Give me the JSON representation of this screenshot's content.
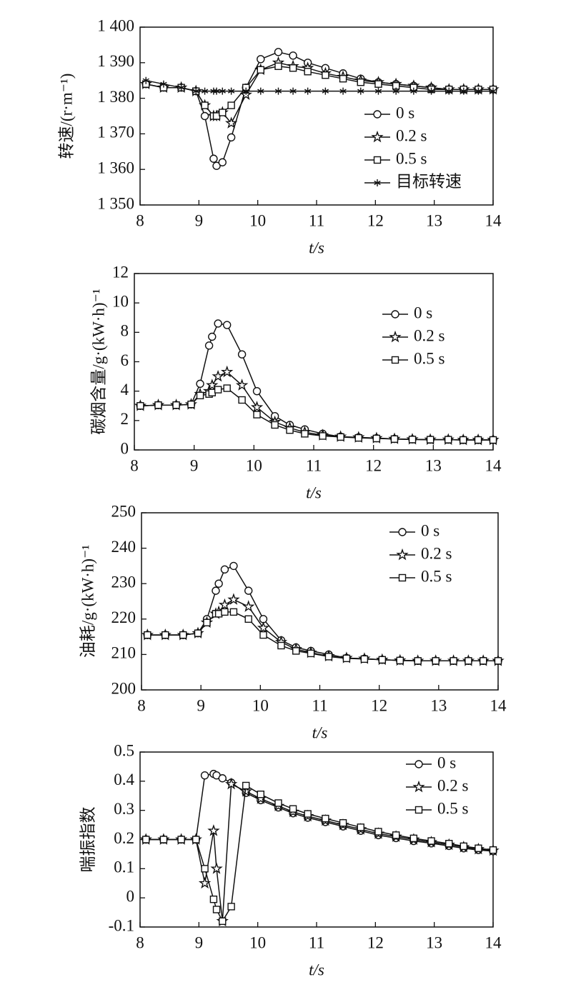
{
  "chart_data": [
    {
      "type": "line",
      "xlabel": "t/s",
      "ylabel": "转速/(r·m⁻¹)",
      "x": [
        8.1,
        8.4,
        8.7,
        8.95,
        9.1,
        9.25,
        9.3,
        9.4,
        9.55,
        9.8,
        10.05,
        10.35,
        10.6,
        10.85,
        11.15,
        11.45,
        11.75,
        12.05,
        12.35,
        12.65,
        12.95,
        13.25,
        13.5,
        13.75,
        14
      ],
      "xlim": [
        8,
        14
      ],
      "xticks": [
        8,
        9,
        10,
        11,
        12,
        13,
        14
      ],
      "ylim": [
        1350,
        1400
      ],
      "yticks": [
        {
          "value": 1350,
          "label": "1 350"
        },
        {
          "value": 1360,
          "label": "1 360"
        },
        {
          "value": 1370,
          "label": "1 370"
        },
        {
          "value": 1380,
          "label": "1 380"
        },
        {
          "value": 1390,
          "label": "1 390"
        },
        {
          "value": 1400,
          "label": "1 400"
        }
      ],
      "series": [
        {
          "name": "0 s",
          "color": "#111111",
          "marker": "circle",
          "values": [
            1384,
            1383,
            1383,
            1382,
            1375,
            1363,
            1361,
            1362,
            1369,
            1383,
            1391,
            1393,
            1392,
            1390,
            1388.5,
            1387,
            1385.5,
            1384.5,
            1384,
            1383.5,
            1383,
            1382.5,
            1382.5,
            1382.5,
            1382.5
          ]
        },
        {
          "name": "0.2 s",
          "color": "#111111",
          "marker": "star",
          "values": [
            1384,
            1383,
            1383,
            1382,
            1378,
            1375,
            1375,
            1376,
            1373,
            1381,
            1388,
            1390,
            1389,
            1388.5,
            1387,
            1386,
            1385,
            1384.5,
            1384,
            1383.5,
            1383,
            1382.5,
            1382.5,
            1382.5,
            1382.5
          ]
        },
        {
          "name": "0.5 s",
          "color": "#111111",
          "marker": "square",
          "values": [
            1384,
            1383,
            1383,
            1382,
            1378,
            1375,
            1375,
            1376,
            1378,
            1383,
            1388,
            1389,
            1388.5,
            1387.5,
            1386.5,
            1385.5,
            1384.5,
            1384,
            1383.5,
            1383,
            1382.5,
            1382.5,
            1382.5,
            1382.5,
            1382.5
          ]
        },
        {
          "name": "目标转速",
          "color": "#111111",
          "marker": "asterisk",
          "values": [
            1385,
            1384,
            1383,
            1382,
            1382,
            1382,
            1382,
            1382,
            1382,
            1382,
            1382,
            1382,
            1382,
            1382,
            1382,
            1382,
            1382,
            1382,
            1382,
            1382,
            1382,
            1382,
            1382,
            1382,
            1382
          ]
        }
      ]
    },
    {
      "type": "line",
      "xlabel": "t/s",
      "ylabel": "碳烟含量/g·(kW·h)⁻¹",
      "x": [
        8.1,
        8.4,
        8.7,
        8.95,
        9.1,
        9.25,
        9.3,
        9.4,
        9.55,
        9.8,
        10.05,
        10.35,
        10.6,
        10.85,
        11.15,
        11.45,
        11.75,
        12.05,
        12.35,
        12.65,
        12.95,
        13.25,
        13.5,
        13.75,
        14
      ],
      "xlim": [
        8,
        14
      ],
      "xticks": [
        8,
        9,
        10,
        11,
        12,
        13,
        14
      ],
      "ylim": [
        0,
        12
      ],
      "yticks": [
        0,
        2,
        4,
        6,
        8,
        10,
        12
      ],
      "series": [
        {
          "name": "0 s",
          "color": "#111111",
          "marker": "circle",
          "values": [
            3,
            3.05,
            3.05,
            3.1,
            4.5,
            7.1,
            7.7,
            8.6,
            8.5,
            6.5,
            4,
            2.3,
            1.7,
            1.4,
            1.1,
            0.9,
            0.85,
            0.8,
            0.75,
            0.72,
            0.7,
            0.7,
            0.68,
            0.68,
            0.68
          ]
        },
        {
          "name": "0.2 s",
          "color": "#111111",
          "marker": "star",
          "values": [
            3,
            3.05,
            3.05,
            3.1,
            3.8,
            4,
            4.4,
            5,
            5.3,
            4.4,
            2.9,
            1.9,
            1.5,
            1.2,
            1,
            0.9,
            0.85,
            0.8,
            0.75,
            0.72,
            0.7,
            0.7,
            0.68,
            0.68,
            0.68
          ]
        },
        {
          "name": "0.5 s",
          "color": "#111111",
          "marker": "square",
          "values": [
            3,
            3.05,
            3.05,
            3.1,
            3.7,
            3.8,
            3.9,
            4.1,
            4.2,
            3.4,
            2.4,
            1.7,
            1.35,
            1.1,
            0.95,
            0.88,
            0.82,
            0.78,
            0.74,
            0.71,
            0.7,
            0.7,
            0.68,
            0.68,
            0.68
          ]
        }
      ]
    },
    {
      "type": "line",
      "xlabel": "t/s",
      "ylabel": "油耗/g·(kW·h)⁻¹",
      "x": [
        8.1,
        8.4,
        8.7,
        8.95,
        9.1,
        9.25,
        9.3,
        9.4,
        9.55,
        9.8,
        10.05,
        10.35,
        10.6,
        10.85,
        11.15,
        11.45,
        11.75,
        12.05,
        12.35,
        12.65,
        12.95,
        13.25,
        13.5,
        13.75,
        14
      ],
      "xlim": [
        8,
        14
      ],
      "xticks": [
        8,
        9,
        10,
        11,
        12,
        13,
        14
      ],
      "ylim": [
        200,
        250
      ],
      "yticks": [
        200,
        210,
        220,
        230,
        240,
        250
      ],
      "series": [
        {
          "name": "0 s",
          "color": "#111111",
          "marker": "circle",
          "values": [
            215.5,
            215.5,
            215.5,
            216,
            220,
            228,
            230,
            234,
            235,
            228,
            220,
            214,
            212,
            211,
            210,
            209,
            208.8,
            208.5,
            208.3,
            208.2,
            208.2,
            208.2,
            208.2,
            208.2,
            208.2
          ]
        },
        {
          "name": "0.2 s",
          "color": "#111111",
          "marker": "star",
          "values": [
            215.5,
            215.5,
            215.5,
            216,
            219,
            221.5,
            222,
            224,
            225.5,
            223.5,
            217.5,
            213.5,
            211.5,
            210.5,
            209.5,
            209,
            208.8,
            208.5,
            208.3,
            208.2,
            208.2,
            208.2,
            208.2,
            208.2,
            208.2
          ]
        },
        {
          "name": "0.5 s",
          "color": "#111111",
          "marker": "square",
          "values": [
            215.5,
            215.5,
            215.5,
            216,
            219,
            221.5,
            221.5,
            222,
            222,
            220,
            215.5,
            212.5,
            211,
            210.3,
            209.4,
            208.9,
            208.7,
            208.5,
            208.3,
            208.2,
            208.2,
            208.2,
            208.2,
            208.2,
            208.2
          ]
        }
      ]
    },
    {
      "type": "line",
      "xlabel": "t/s",
      "ylabel": "喘振指数",
      "x": [
        8.1,
        8.4,
        8.7,
        8.95,
        9.1,
        9.25,
        9.3,
        9.4,
        9.55,
        9.8,
        10.05,
        10.35,
        10.6,
        10.85,
        11.15,
        11.45,
        11.75,
        12.05,
        12.35,
        12.65,
        12.95,
        13.25,
        13.5,
        13.75,
        14
      ],
      "xlim": [
        8,
        14
      ],
      "xticks": [
        8,
        9,
        10,
        11,
        12,
        13,
        14
      ],
      "ylim": [
        -0.1,
        0.5
      ],
      "yticks": [
        -0.1,
        0,
        0.1,
        0.2,
        0.3,
        0.4,
        0.5
      ],
      "series": [
        {
          "name": "0 s",
          "color": "#111111",
          "marker": "circle",
          "values": [
            0.2,
            0.2,
            0.2,
            0.2,
            0.42,
            0.425,
            0.42,
            0.41,
            0.395,
            0.36,
            0.335,
            0.31,
            0.29,
            0.275,
            0.26,
            0.245,
            0.23,
            0.215,
            0.205,
            0.195,
            0.187,
            0.178,
            0.17,
            0.164,
            0.16
          ]
        },
        {
          "name": "0.2 s",
          "color": "#111111",
          "marker": "star",
          "values": [
            0.2,
            0.2,
            0.2,
            0.2,
            0.05,
            0.23,
            0.1,
            -0.08,
            0.39,
            0.365,
            0.34,
            0.315,
            0.295,
            0.28,
            0.265,
            0.25,
            0.235,
            0.22,
            0.21,
            0.2,
            0.191,
            0.182,
            0.174,
            0.167,
            0.162
          ]
        },
        {
          "name": "0.5 s",
          "color": "#111111",
          "marker": "square",
          "values": [
            0.2,
            0.2,
            0.2,
            0.2,
            0.1,
            -0.005,
            -0.04,
            -0.08,
            -0.03,
            0.385,
            0.355,
            0.325,
            0.305,
            0.288,
            0.272,
            0.257,
            0.242,
            0.227,
            0.215,
            0.204,
            0.195,
            0.186,
            0.177,
            0.17,
            0.164
          ]
        }
      ]
    }
  ]
}
